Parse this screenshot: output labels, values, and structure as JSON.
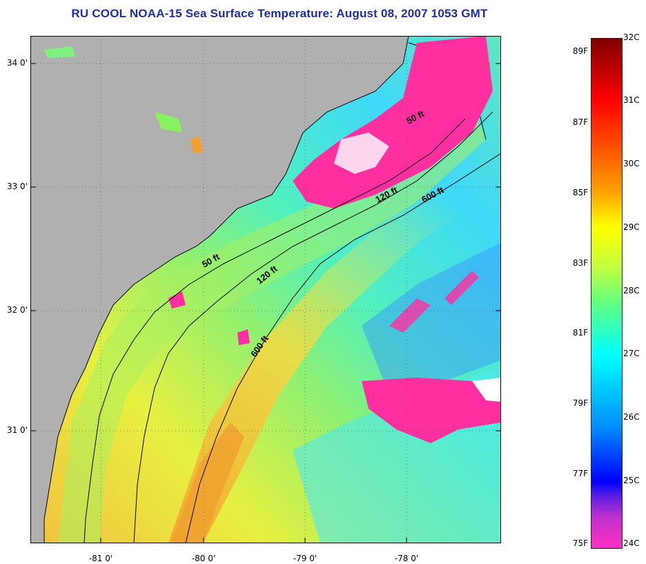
{
  "title": "RU COOL  NOAA-15  Sea Surface Temperature:  August 08, 2007 1053 GMT",
  "map": {
    "latitude_labels": [
      "34 0'",
      "33 0'",
      "32 0'",
      "31 0'"
    ],
    "longitude_labels": [
      "-81 0'",
      "-80 0'",
      "-79 0'",
      "-78 0'"
    ],
    "contour_labels": [
      "50 ft",
      "120 ft",
      "600 ft",
      "50 ft",
      "120 ft",
      "600 ft"
    ]
  },
  "colorbar": {
    "celsius_labels": [
      "32C",
      "31C",
      "30C",
      "29C",
      "28C",
      "27C",
      "26C",
      "25C",
      "24C"
    ],
    "fahrenheit_labels": [
      "89F",
      "87F",
      "85F",
      "83F",
      "81F",
      "79F",
      "77F",
      "75F"
    ],
    "colors": {
      "dark_red": "#800000",
      "red": "#ff0000",
      "orange": "#ff8c00",
      "yellow": "#ffff00",
      "green": "#80ff80",
      "cyan": "#00ffff",
      "blue": "#0060ff",
      "deep_blue": "#0000ff",
      "purple": "#8040ff",
      "magenta": "#ff30c0"
    }
  },
  "land_color": "#b0b0b0",
  "cloud_mask_color": "#ff2fa0"
}
